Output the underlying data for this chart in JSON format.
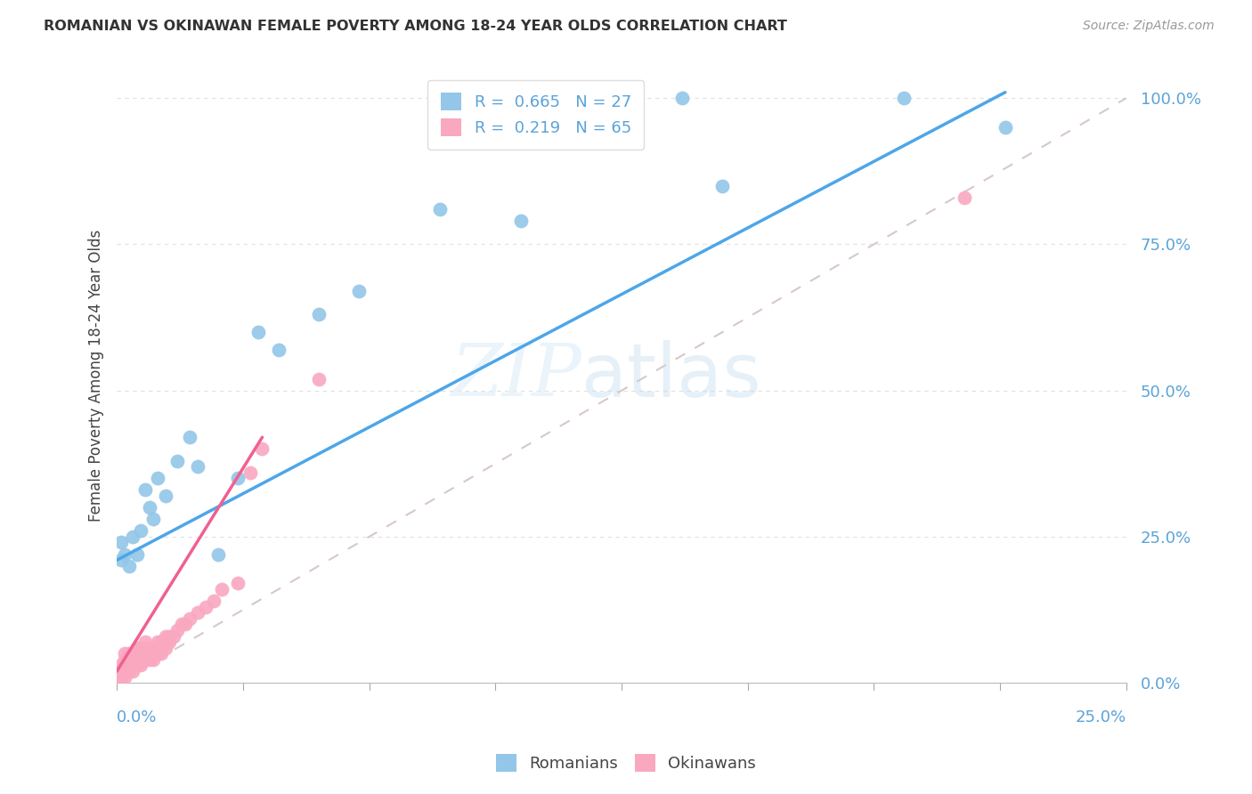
{
  "title": "ROMANIAN VS OKINAWAN FEMALE POVERTY AMONG 18-24 YEAR OLDS CORRELATION CHART",
  "source": "Source: ZipAtlas.com",
  "ylabel": "Female Poverty Among 18-24 Year Olds",
  "ytick_labels": [
    "0.0%",
    "25.0%",
    "50.0%",
    "75.0%",
    "100.0%"
  ],
  "ytick_values": [
    0.0,
    0.25,
    0.5,
    0.75,
    1.0
  ],
  "xlim": [
    0,
    0.25
  ],
  "ylim": [
    0,
    1.05
  ],
  "r_romanian": 0.665,
  "n_romanian": 27,
  "r_okinawan": 0.219,
  "n_okinawan": 65,
  "color_romanian": "#93c6e8",
  "color_okinawan": "#f9a8c0",
  "color_trend_romanian": "#4da6e8",
  "color_trend_okinawan": "#f06090",
  "color_ref_line": "#d8c8c8",
  "watermark_zip": "ZIP",
  "watermark_atlas": "atlas",
  "bg_color": "#ffffff",
  "grid_color": "#e0e0e0",
  "romanian_x": [
    0.001,
    0.001,
    0.002,
    0.003,
    0.004,
    0.005,
    0.006,
    0.007,
    0.008,
    0.009,
    0.01,
    0.012,
    0.015,
    0.018,
    0.02,
    0.025,
    0.03,
    0.035,
    0.04,
    0.05,
    0.06,
    0.08,
    0.1,
    0.14,
    0.15,
    0.195,
    0.22
  ],
  "romanian_y": [
    0.21,
    0.24,
    0.22,
    0.2,
    0.25,
    0.22,
    0.26,
    0.33,
    0.3,
    0.28,
    0.35,
    0.32,
    0.38,
    0.42,
    0.37,
    0.22,
    0.35,
    0.6,
    0.57,
    0.63,
    0.67,
    0.81,
    0.79,
    1.0,
    0.85,
    1.0,
    0.95
  ],
  "okinawan_x": [
    0.0,
    0.0,
    0.001,
    0.001,
    0.001,
    0.001,
    0.001,
    0.002,
    0.002,
    0.002,
    0.002,
    0.002,
    0.002,
    0.003,
    0.003,
    0.003,
    0.003,
    0.003,
    0.004,
    0.004,
    0.004,
    0.004,
    0.005,
    0.005,
    0.005,
    0.005,
    0.006,
    0.006,
    0.006,
    0.006,
    0.007,
    0.007,
    0.007,
    0.007,
    0.008,
    0.008,
    0.008,
    0.009,
    0.009,
    0.009,
    0.01,
    0.01,
    0.01,
    0.011,
    0.011,
    0.011,
    0.012,
    0.012,
    0.012,
    0.013,
    0.013,
    0.014,
    0.015,
    0.016,
    0.017,
    0.018,
    0.02,
    0.022,
    0.024,
    0.026,
    0.03,
    0.033,
    0.036,
    0.05,
    0.21
  ],
  "okinawan_y": [
    0.0,
    0.01,
    0.01,
    0.01,
    0.02,
    0.02,
    0.03,
    0.01,
    0.02,
    0.02,
    0.03,
    0.04,
    0.05,
    0.02,
    0.02,
    0.03,
    0.04,
    0.05,
    0.02,
    0.03,
    0.04,
    0.05,
    0.03,
    0.04,
    0.05,
    0.06,
    0.03,
    0.04,
    0.05,
    0.06,
    0.04,
    0.05,
    0.06,
    0.07,
    0.04,
    0.05,
    0.06,
    0.04,
    0.05,
    0.06,
    0.05,
    0.06,
    0.07,
    0.05,
    0.06,
    0.07,
    0.06,
    0.07,
    0.08,
    0.07,
    0.08,
    0.08,
    0.09,
    0.1,
    0.1,
    0.11,
    0.12,
    0.13,
    0.14,
    0.16,
    0.17,
    0.36,
    0.4,
    0.52,
    0.83
  ],
  "trend_rom_x0": 0.0,
  "trend_rom_x1": 0.22,
  "trend_rom_y0": 0.21,
  "trend_rom_y1": 1.01,
  "trend_okin_x0": 0.0,
  "trend_okin_x1": 0.036,
  "trend_okin_y0": 0.02,
  "trend_okin_y1": 0.42,
  "ref_line_x0": 0.0,
  "ref_line_x1": 0.25,
  "ref_line_y0": 0.0,
  "ref_line_y1": 1.0
}
